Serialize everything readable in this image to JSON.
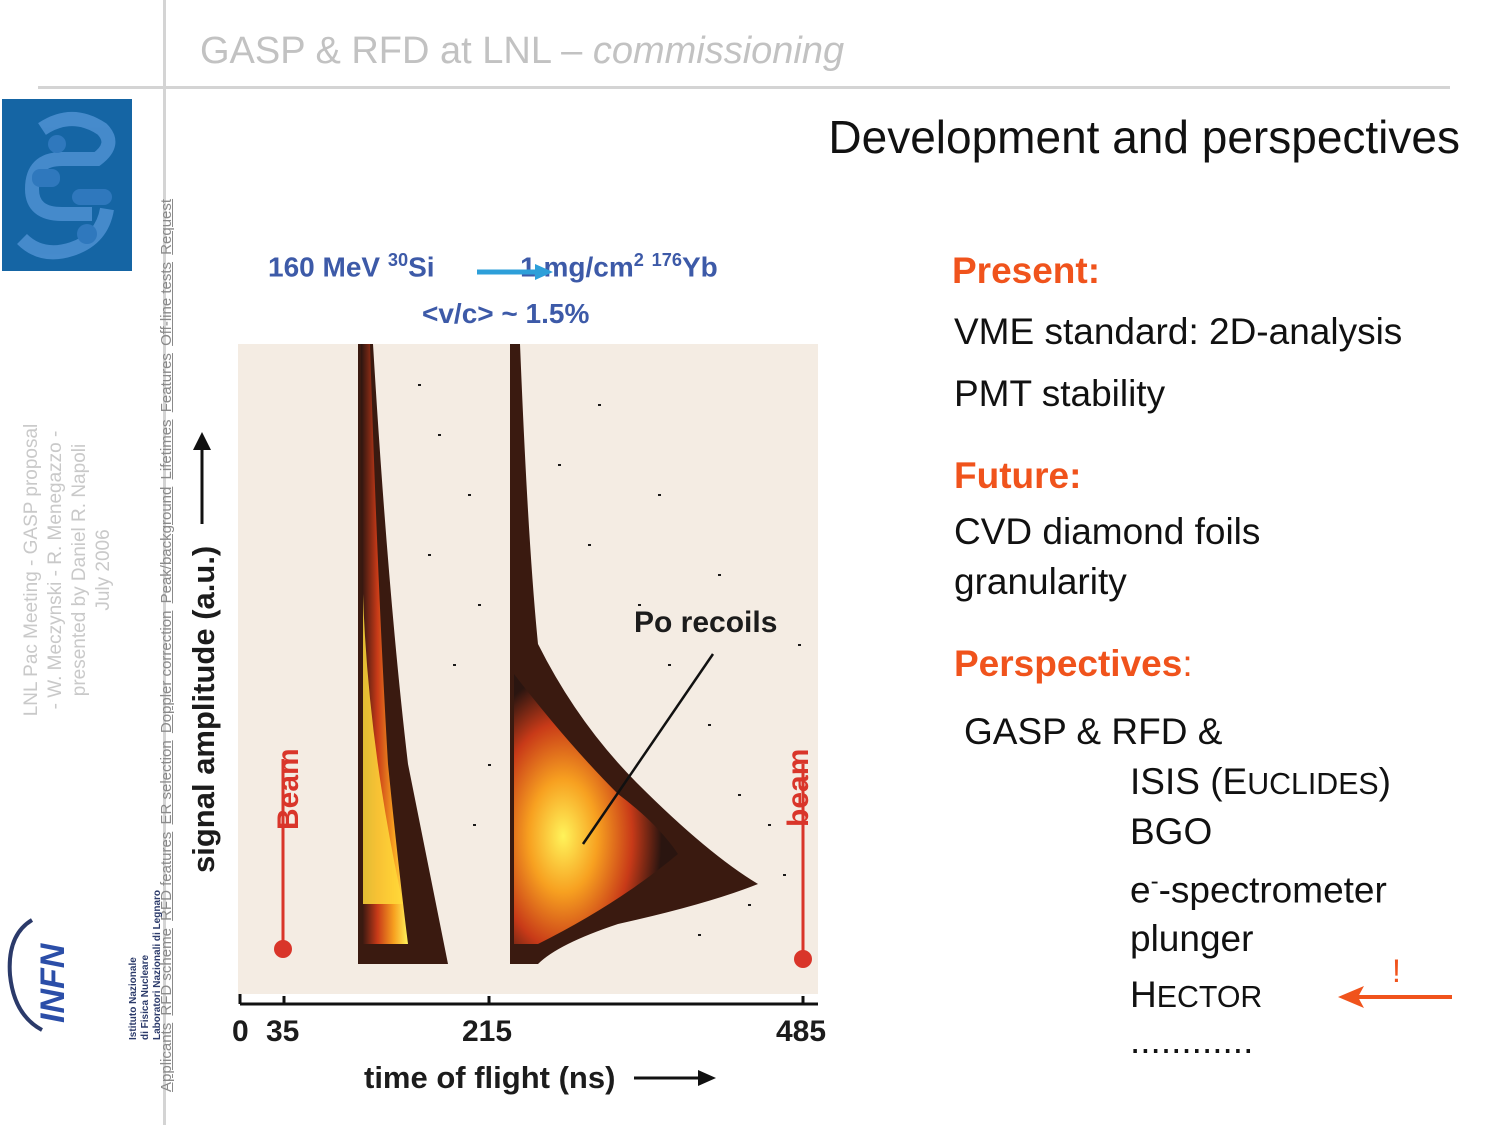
{
  "header": {
    "main": "GASP & RFD at LNL",
    "dash": " – ",
    "sub": "commissioning"
  },
  "sidebar_nav": [
    "Applicants",
    "RFD scheme",
    "RFD features",
    "ER selection",
    "Doppler correction",
    "Peak/background",
    "Lifetimes",
    "Features",
    "Off-line tests",
    "Request"
  ],
  "meta": {
    "line1": "LNL Pac Meeting - GASP proposal",
    "line2": "- W. Meczynski - R. Menegazzo -",
    "line3": "presented by Daniel R. Napoli",
    "line4": "July 2006"
  },
  "infn": {
    "logo_text": "INFN",
    "line1": "Istituto Nazionale",
    "line2": "di Fisica Nucleare",
    "line3": "Laboratori Nazionali di Legnaro"
  },
  "title": "Development and perspectives",
  "figure": {
    "beam_energy": "160 MeV",
    "beam_mass": "30",
    "beam_elem": "Si",
    "target_thick": "1 mg/cm",
    "target_exp": "2",
    "target_mass": "176",
    "target_elem": "Yb",
    "velocity": "<v/c> ~ 1.5%",
    "ylabel": "signal amplitude (a.u.)",
    "xlabel": "time of flight (ns)",
    "x_ticks": [
      "0",
      "35",
      "215",
      "485"
    ],
    "left_marker": "Beam",
    "right_marker": "beam",
    "annotation": "Po recoils"
  },
  "present": {
    "heading": "Present:",
    "items": [
      "VME standard:  2D-analysis",
      "PMT stability"
    ]
  },
  "future": {
    "heading": "Future:",
    "items": [
      "CVD diamond foils",
      "granularity"
    ]
  },
  "perspectives": {
    "heading": "Perspectives",
    "colon": ":",
    "lead": "GASP & RFD &",
    "isis_a": "ISIS (E",
    "isis_b": "UCLIDES",
    "isis_c": ")",
    "bgo": "BGO",
    "espec_a": "e",
    "espec_sup": "-",
    "espec_b": "-spectrometer",
    "plunger": "plunger",
    "hector_a": "H",
    "hector_b": "ECTOR",
    "dots": "............",
    "mark": "!"
  },
  "colors": {
    "accent": "#f0531c",
    "logo": "#1565a4",
    "figure_blue": "#3d5aa8",
    "marker_red": "#d9352a"
  }
}
